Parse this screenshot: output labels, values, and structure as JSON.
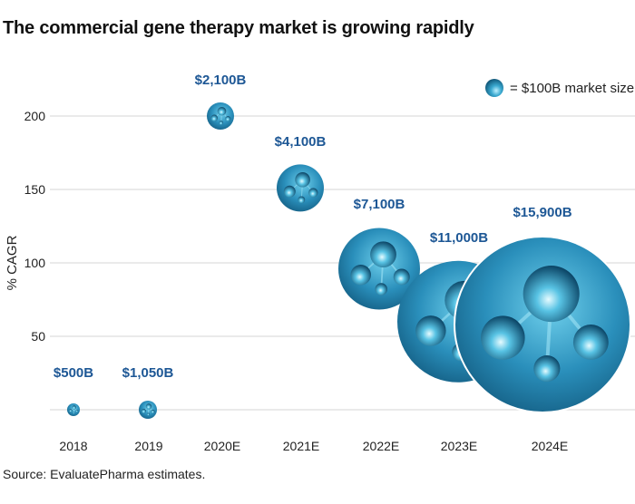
{
  "chart_data": {
    "type": "scatter",
    "title": "The commercial  gene therapy market is growing rapidly",
    "xlabel": "",
    "ylabel": "% CAGR",
    "ylim": [
      0,
      200
    ],
    "y_ticks": [
      "200",
      "150",
      "100",
      "50"
    ],
    "grid": true,
    "categories": [
      "2018",
      "2019",
      "2020E",
      "2021E",
      "2022E",
      "2023E",
      "2024E"
    ],
    "cagr": [
      0,
      0,
      200,
      151,
      96,
      60,
      58
    ],
    "market_size_labels": [
      "$500B",
      "$1,050B",
      "$2,100B",
      "$4,100B",
      "$7,100B",
      "$11,000B",
      "$15,900B"
    ],
    "market_size": [
      500,
      1050,
      2100,
      4100,
      7100,
      11000,
      15900
    ],
    "legend": "= $100B market size",
    "legend_position": "top-right",
    "source": "Source: EvaluatePharma estimates."
  },
  "colors": {
    "label": "#1d5795",
    "bubble_dark": "#0e5c80",
    "bubble_light": "#5cc6e6",
    "grid": "#dddddd"
  }
}
